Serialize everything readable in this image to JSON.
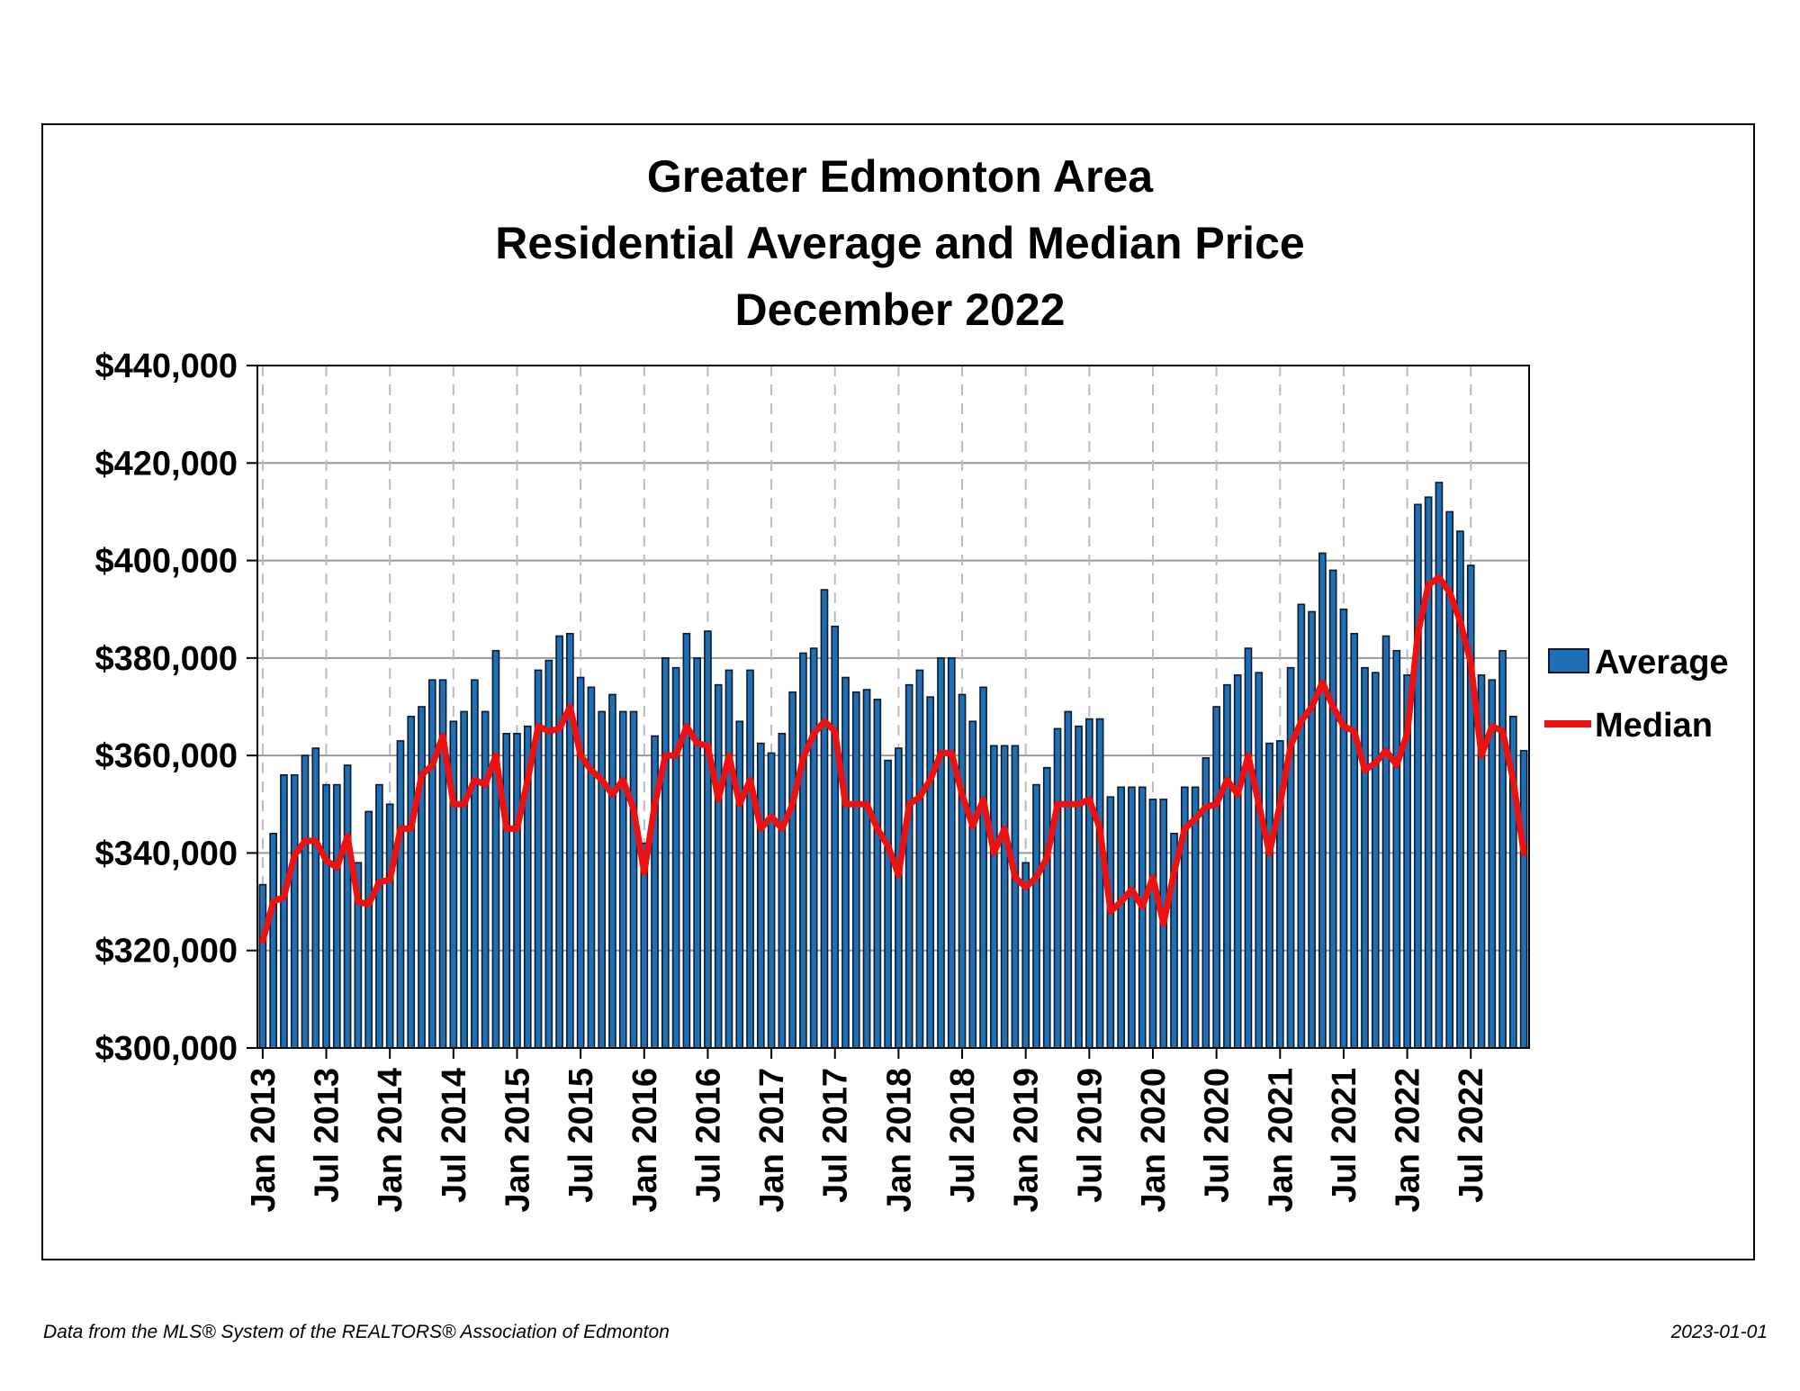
{
  "footer": {
    "source": "Data from the MLS® System of the REALTORS® Association of Edmonton",
    "date": "2023-01-01"
  },
  "colors": {
    "bar_fill": "#1f6fb5",
    "bar_stroke": "#0b1a2e",
    "median_line": "#ee1111",
    "gridline": "#999999",
    "vertical_grid": "#bbbbbb"
  },
  "chart_data": {
    "type": "bar+line",
    "title": [
      "Greater Edmonton Area",
      "Residential Average and Median Price",
      "December 2022"
    ],
    "xlabel": "",
    "ylabel": "",
    "ylim": [
      300000,
      440000
    ],
    "y_ticks": [
      "$300,000",
      "$320,000",
      "$340,000",
      "$360,000",
      "$380,000",
      "$400,000",
      "$420,000",
      "$440,000"
    ],
    "x_tick_labels": [
      "Jan 2013",
      "Jul 2013",
      "Jan 2014",
      "Jul 2014",
      "Jan 2015",
      "Jul 2015",
      "Jan 2016",
      "Jul 2016",
      "Jan 2017",
      "Jul 2017",
      "Jan 2018",
      "Jul 2018",
      "Jan 2019",
      "Jul 2019",
      "Jan 2020",
      "Jul 2020",
      "Jan 2021",
      "Jul 2021",
      "Jan 2022",
      "Jul 2022"
    ],
    "x_start": "Jan 2013",
    "x_end": "Dec 2022",
    "grid": {
      "horizontal": true,
      "vertical_dashed": true
    },
    "legend": {
      "placement": "right",
      "entries": [
        "Average",
        "Median"
      ]
    },
    "series": [
      {
        "name": "Average",
        "type": "bar",
        "values": [
          333500,
          344000,
          356000,
          356000,
          360000,
          361500,
          354000,
          354000,
          358000,
          338000,
          348500,
          354000,
          350000,
          363000,
          368000,
          370000,
          375500,
          375500,
          367000,
          369000,
          375500,
          369000,
          381500,
          364500,
          364500,
          366000,
          377500,
          379500,
          384500,
          385000,
          376000,
          374000,
          369000,
          372500,
          369000,
          369000,
          342000,
          364000,
          380000,
          378000,
          385000,
          380000,
          385500,
          374500,
          377500,
          367000,
          377500,
          362500,
          360500,
          364500,
          373000,
          381000,
          382000,
          394000,
          386500,
          376000,
          373000,
          373500,
          371500,
          359000,
          361500,
          374500,
          377500,
          372000,
          380000,
          380000,
          372500,
          367000,
          374000,
          362000,
          362000,
          362000,
          338000,
          354000,
          357500,
          365500,
          369000,
          366000,
          367500,
          367500,
          351500,
          353500,
          353500,
          353500,
          351000,
          351000,
          344000,
          353500,
          353500,
          359500,
          370000,
          374500,
          376500,
          382000,
          377000,
          362500,
          363000,
          378000,
          391000,
          389500,
          401500,
          398000,
          390000,
          385000,
          378000,
          377000,
          384500,
          381500,
          376500,
          411500,
          413000,
          416000,
          410000,
          406000,
          399000,
          376500,
          375500,
          381500,
          368000,
          361000
        ]
      },
      {
        "name": "Median",
        "type": "line",
        "values": [
          322000,
          330000,
          331000,
          339500,
          342500,
          342500,
          338500,
          337000,
          343500,
          330000,
          329500,
          334000,
          334500,
          345000,
          345000,
          356000,
          358000,
          364000,
          350000,
          350000,
          355000,
          354000,
          360000,
          345000,
          345000,
          355000,
          366000,
          365000,
          365500,
          370000,
          360000,
          357000,
          355000,
          352000,
          355000,
          349000,
          336000,
          350000,
          360000,
          360000,
          366000,
          362500,
          362000,
          351000,
          360000,
          350000,
          355000,
          345000,
          347500,
          345000,
          350000,
          359500,
          364500,
          367000,
          365000,
          350000,
          350000,
          350000,
          345000,
          341500,
          335500,
          350000,
          351500,
          355000,
          360500,
          360500,
          352000,
          345500,
          351000,
          340000,
          345000,
          335000,
          333000,
          335000,
          339000,
          350000,
          350000,
          350000,
          351000,
          345000,
          328000,
          330000,
          332500,
          329000,
          335000,
          325500,
          336000,
          345000,
          347000,
          349500,
          350000,
          355000,
          352000,
          360000,
          350000,
          340000,
          350000,
          362000,
          367000,
          370000,
          375000,
          370000,
          366000,
          365000,
          357000,
          358500,
          361000,
          358000,
          364500,
          385000,
          395000,
          396500,
          393500,
          387500,
          379000,
          360000,
          366000,
          365000,
          355000,
          340000
        ]
      }
    ]
  }
}
